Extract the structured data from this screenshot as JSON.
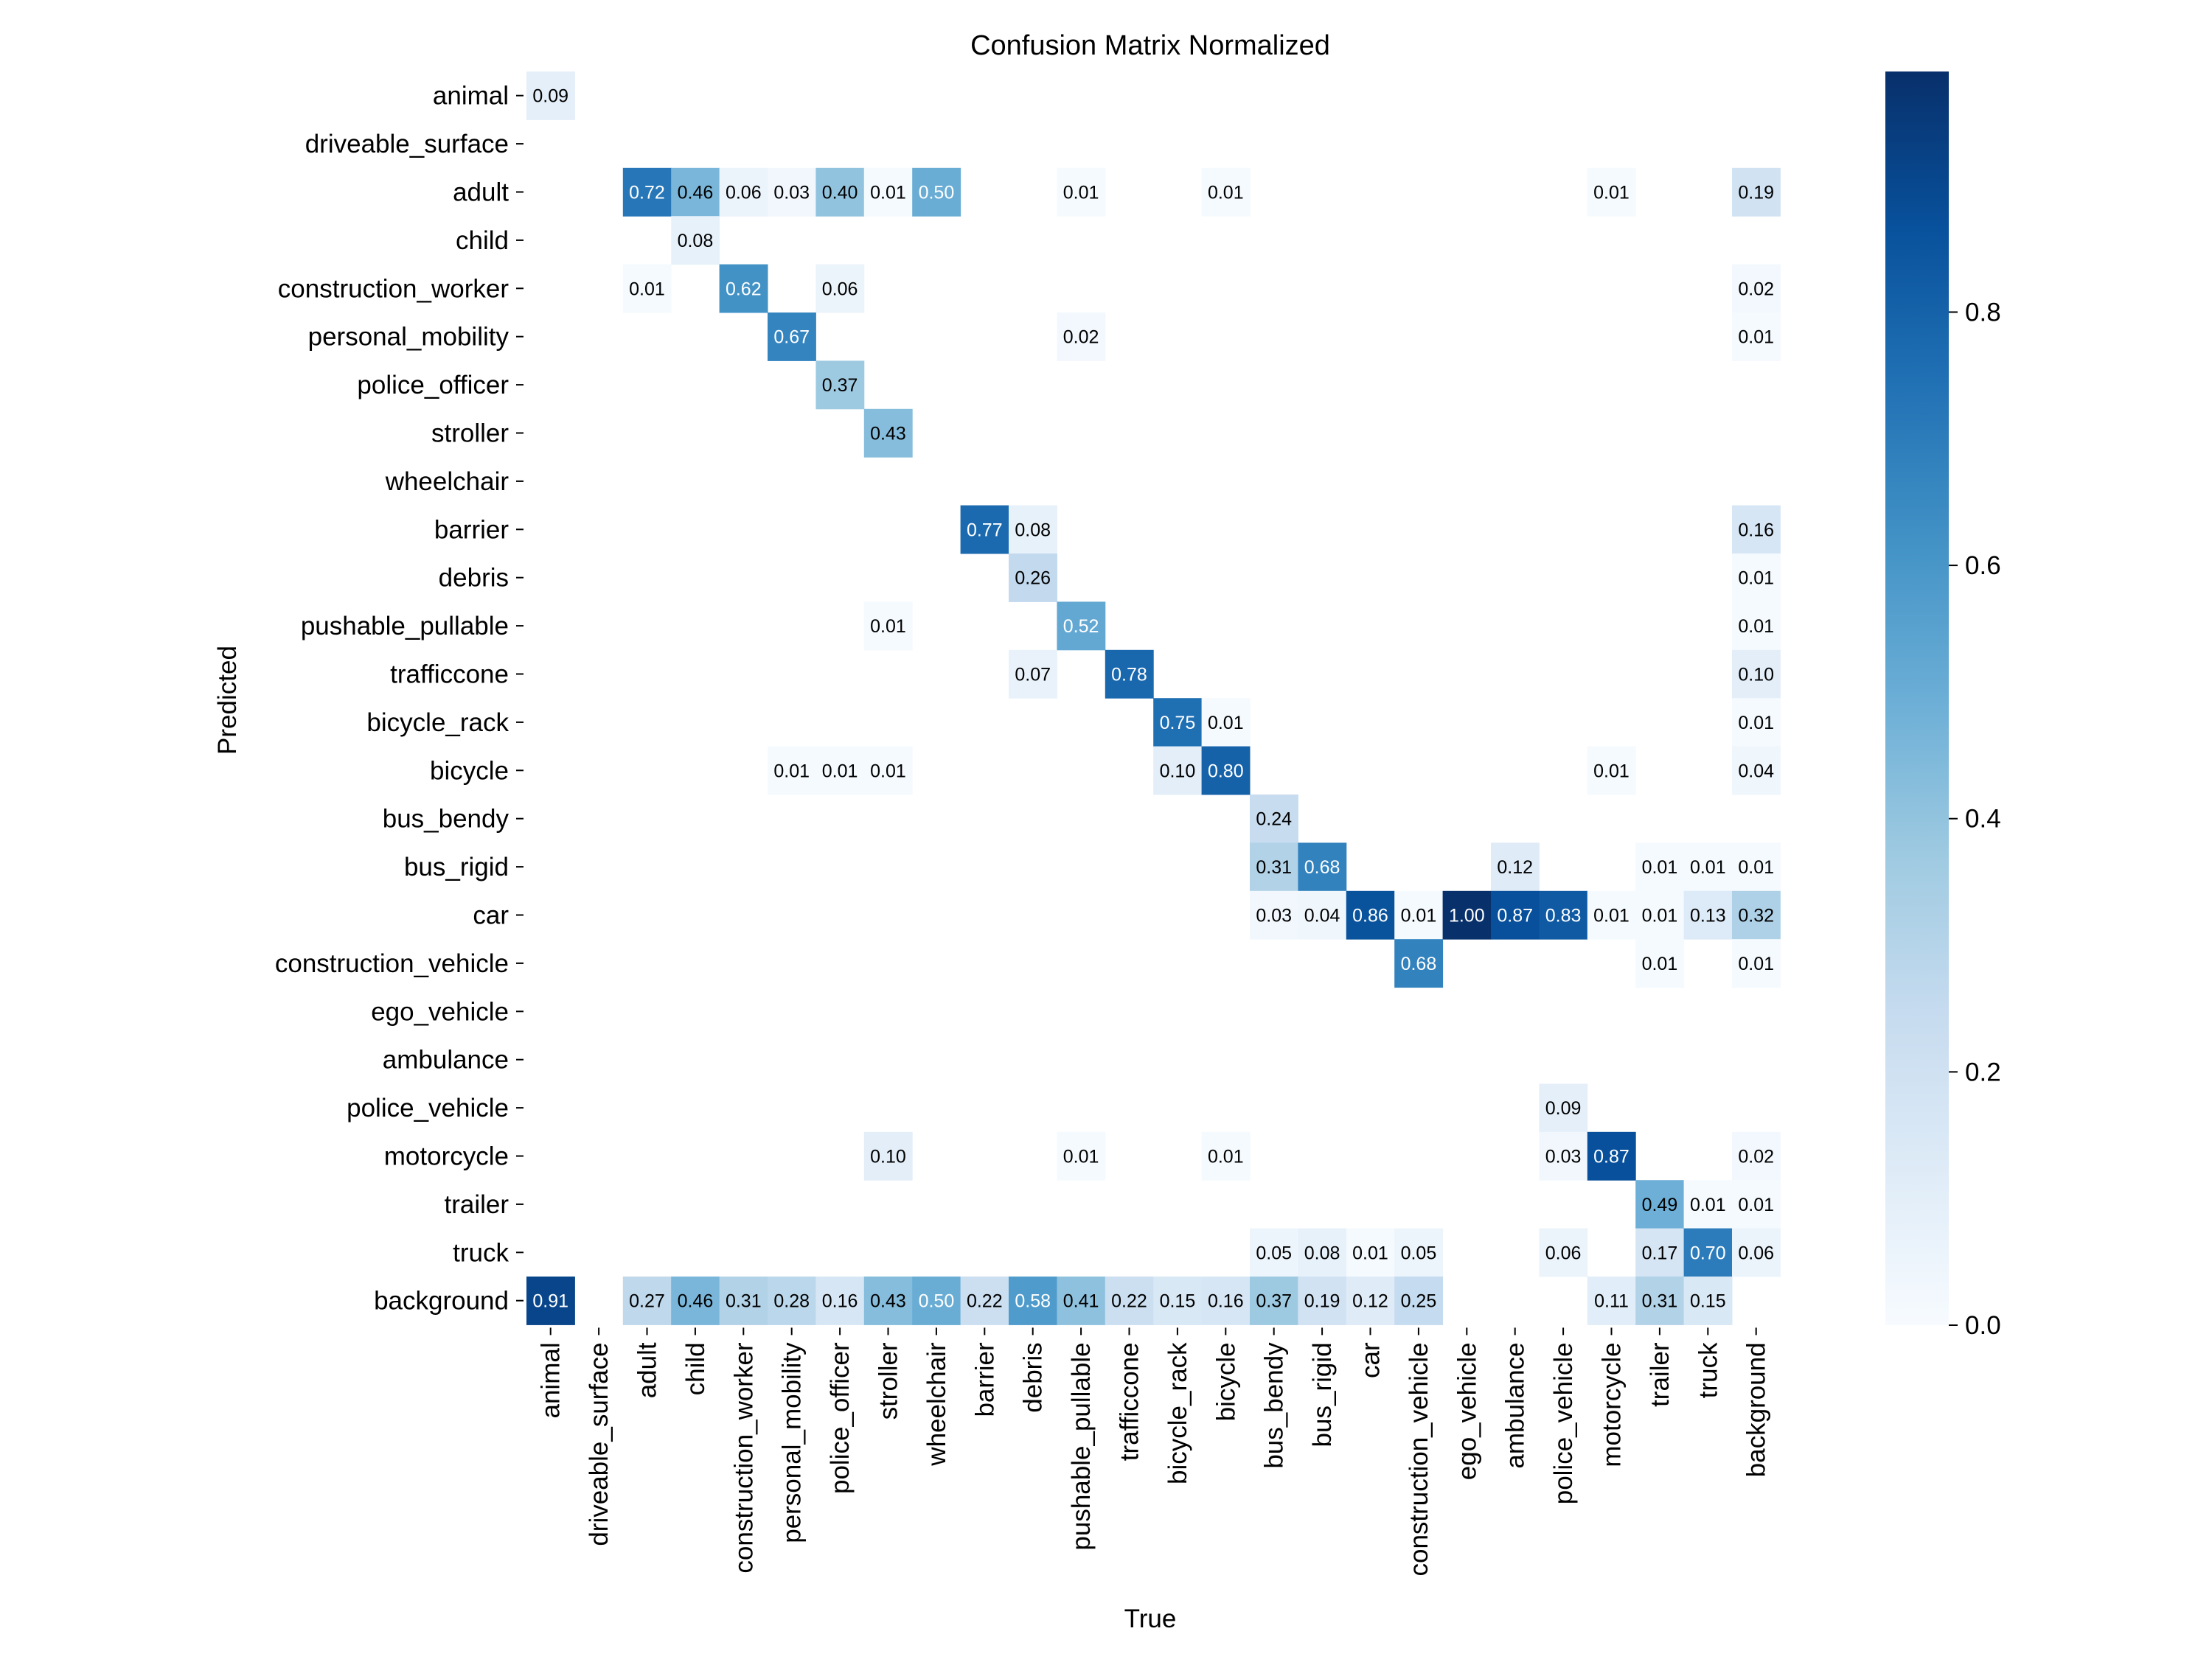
{
  "chart_data": {
    "type": "heatmap",
    "title": "Confusion Matrix Normalized",
    "xlabel": "True",
    "ylabel": "Predicted",
    "colormap": "Blues",
    "colors": {
      "low": "#f7fbff",
      "high": "#08306b"
    },
    "vmin": 0.0,
    "vmax": 0.99,
    "colorbar_ticks": [
      0.0,
      0.2,
      0.4,
      0.6,
      0.8
    ],
    "colorbar_tick_labels": [
      "0.0",
      "0.2",
      "0.4",
      "0.6",
      "0.8"
    ],
    "x_categories": [
      "animal",
      "driveable_surface",
      "adult",
      "child",
      "construction_worker",
      "personal_mobility",
      "police_officer",
      "stroller",
      "wheelchair",
      "barrier",
      "debris",
      "pushable_pullable",
      "trafficcone",
      "bicycle_rack",
      "bicycle",
      "bus_bendy",
      "bus_rigid",
      "car",
      "construction_vehicle",
      "ego_vehicle",
      "ambulance",
      "police_vehicle",
      "motorcycle",
      "trailer",
      "truck",
      "background"
    ],
    "y_categories": [
      "animal",
      "driveable_surface",
      "adult",
      "child",
      "construction_worker",
      "personal_mobility",
      "police_officer",
      "stroller",
      "wheelchair",
      "barrier",
      "debris",
      "pushable_pullable",
      "trafficcone",
      "bicycle_rack",
      "bicycle",
      "bus_bendy",
      "bus_rigid",
      "car",
      "construction_vehicle",
      "ego_vehicle",
      "ambulance",
      "police_vehicle",
      "motorcycle",
      "trailer",
      "truck",
      "background"
    ],
    "cells": [
      [
        "animal",
        "animal",
        0.09
      ],
      [
        "adult",
        "adult",
        0.72
      ],
      [
        "adult",
        "child",
        0.46
      ],
      [
        "adult",
        "construction_worker",
        0.06
      ],
      [
        "adult",
        "personal_mobility",
        0.03
      ],
      [
        "adult",
        "police_officer",
        0.4
      ],
      [
        "adult",
        "stroller",
        0.01
      ],
      [
        "adult",
        "wheelchair",
        0.5
      ],
      [
        "adult",
        "pushable_pullable",
        0.01
      ],
      [
        "adult",
        "bicycle",
        0.01
      ],
      [
        "adult",
        "motorcycle",
        0.01
      ],
      [
        "adult",
        "background",
        0.19
      ],
      [
        "child",
        "child",
        0.08
      ],
      [
        "construction_worker",
        "adult",
        0.01
      ],
      [
        "construction_worker",
        "construction_worker",
        0.62
      ],
      [
        "construction_worker",
        "police_officer",
        0.06
      ],
      [
        "construction_worker",
        "background",
        0.02
      ],
      [
        "personal_mobility",
        "personal_mobility",
        0.67
      ],
      [
        "personal_mobility",
        "pushable_pullable",
        0.02
      ],
      [
        "personal_mobility",
        "background",
        0.01
      ],
      [
        "police_officer",
        "police_officer",
        0.37
      ],
      [
        "stroller",
        "stroller",
        0.43
      ],
      [
        "barrier",
        "barrier",
        0.77
      ],
      [
        "barrier",
        "debris",
        0.08
      ],
      [
        "barrier",
        "background",
        0.16
      ],
      [
        "debris",
        "debris",
        0.26
      ],
      [
        "debris",
        "background",
        0.01
      ],
      [
        "pushable_pullable",
        "stroller",
        0.01
      ],
      [
        "pushable_pullable",
        "pushable_pullable",
        0.52
      ],
      [
        "pushable_pullable",
        "background",
        0.01
      ],
      [
        "trafficcone",
        "debris",
        0.07
      ],
      [
        "trafficcone",
        "trafficcone",
        0.78
      ],
      [
        "trafficcone",
        "background",
        0.1
      ],
      [
        "bicycle_rack",
        "bicycle_rack",
        0.75
      ],
      [
        "bicycle_rack",
        "bicycle",
        0.01
      ],
      [
        "bicycle_rack",
        "background",
        0.01
      ],
      [
        "bicycle",
        "personal_mobility",
        0.01
      ],
      [
        "bicycle",
        "police_officer",
        0.01
      ],
      [
        "bicycle",
        "stroller",
        0.01
      ],
      [
        "bicycle",
        "bicycle_rack",
        0.1
      ],
      [
        "bicycle",
        "bicycle",
        0.8
      ],
      [
        "bicycle",
        "motorcycle",
        0.01
      ],
      [
        "bicycle",
        "background",
        0.04
      ],
      [
        "bus_bendy",
        "bus_bendy",
        0.24
      ],
      [
        "bus_rigid",
        "bus_bendy",
        0.31
      ],
      [
        "bus_rigid",
        "bus_rigid",
        0.68
      ],
      [
        "bus_rigid",
        "ambulance",
        0.12
      ],
      [
        "bus_rigid",
        "trailer",
        0.01
      ],
      [
        "bus_rigid",
        "truck",
        0.01
      ],
      [
        "bus_rigid",
        "background",
        0.01
      ],
      [
        "car",
        "bus_bendy",
        0.03
      ],
      [
        "car",
        "bus_rigid",
        0.04
      ],
      [
        "car",
        "car",
        0.86
      ],
      [
        "car",
        "construction_vehicle",
        0.01
      ],
      [
        "car",
        "ego_vehicle",
        1.0
      ],
      [
        "car",
        "ambulance",
        0.87
      ],
      [
        "car",
        "police_vehicle",
        0.83
      ],
      [
        "car",
        "motorcycle",
        0.01
      ],
      [
        "car",
        "trailer",
        0.01
      ],
      [
        "car",
        "truck",
        0.13
      ],
      [
        "car",
        "background",
        0.32
      ],
      [
        "construction_vehicle",
        "construction_vehicle",
        0.68
      ],
      [
        "construction_vehicle",
        "trailer",
        0.01
      ],
      [
        "construction_vehicle",
        "background",
        0.01
      ],
      [
        "police_vehicle",
        "police_vehicle",
        0.09
      ],
      [
        "motorcycle",
        "stroller",
        0.1
      ],
      [
        "motorcycle",
        "pushable_pullable",
        0.01
      ],
      [
        "motorcycle",
        "bicycle",
        0.01
      ],
      [
        "motorcycle",
        "police_vehicle",
        0.03
      ],
      [
        "motorcycle",
        "motorcycle",
        0.87
      ],
      [
        "motorcycle",
        "background",
        0.02
      ],
      [
        "trailer",
        "trailer",
        0.49
      ],
      [
        "trailer",
        "truck",
        0.01
      ],
      [
        "trailer",
        "background",
        0.01
      ],
      [
        "truck",
        "bus_bendy",
        0.05
      ],
      [
        "truck",
        "bus_rigid",
        0.08
      ],
      [
        "truck",
        "car",
        0.01
      ],
      [
        "truck",
        "construction_vehicle",
        0.05
      ],
      [
        "truck",
        "police_vehicle",
        0.06
      ],
      [
        "truck",
        "trailer",
        0.17
      ],
      [
        "truck",
        "truck",
        0.7
      ],
      [
        "truck",
        "background",
        0.06
      ],
      [
        "background",
        "animal",
        0.91
      ],
      [
        "background",
        "adult",
        0.27
      ],
      [
        "background",
        "child",
        0.46
      ],
      [
        "background",
        "construction_worker",
        0.31
      ],
      [
        "background",
        "personal_mobility",
        0.28
      ],
      [
        "background",
        "police_officer",
        0.16
      ],
      [
        "background",
        "stroller",
        0.43
      ],
      [
        "background",
        "wheelchair",
        0.5
      ],
      [
        "background",
        "barrier",
        0.22
      ],
      [
        "background",
        "debris",
        0.58
      ],
      [
        "background",
        "pushable_pullable",
        0.41
      ],
      [
        "background",
        "trafficcone",
        0.22
      ],
      [
        "background",
        "bicycle_rack",
        0.15
      ],
      [
        "background",
        "bicycle",
        0.16
      ],
      [
        "background",
        "bus_bendy",
        0.37
      ],
      [
        "background",
        "bus_rigid",
        0.19
      ],
      [
        "background",
        "car",
        0.12
      ],
      [
        "background",
        "construction_vehicle",
        0.25
      ],
      [
        "background",
        "motorcycle",
        0.11
      ],
      [
        "background",
        "trailer",
        0.31
      ],
      [
        "background",
        "truck",
        0.15
      ]
    ]
  }
}
